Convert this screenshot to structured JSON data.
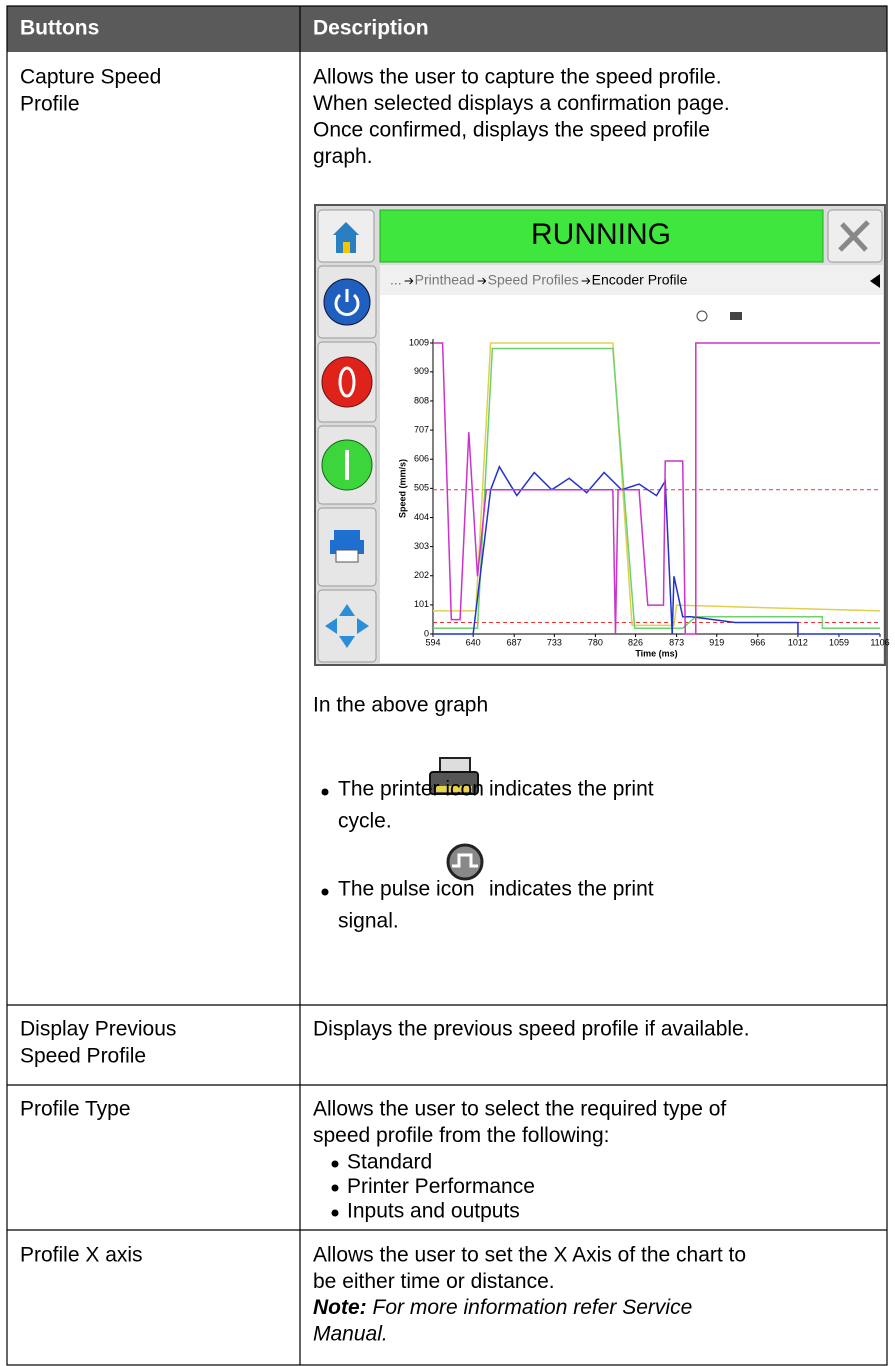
{
  "table": {
    "header": [
      "Buttons",
      "Description"
    ],
    "rows": [
      {
        "button": [
          "Capture Speed",
          "Profile"
        ],
        "description": [
          "Allows the user to capture the speed profile.",
          "When selected displays a confirmation page.",
          "Once confirmed, displays the speed profile",
          "graph."
        ],
        "screenshot": {
          "status": "RUNNING",
          "breadcrumb": [
            "...",
            "Printhead",
            "Speed Profiles",
            "Encoder Profile"
          ],
          "chart": {
            "type": "line",
            "ylabel": "Speed (mm/s)",
            "xlabel": "Time (ms)",
            "xlim": [
              594,
              1106
            ],
            "ylim": [
              0,
              1009
            ],
            "xticks": [
              594,
              640,
              687,
              733,
              780,
              826,
              873,
              919,
              966,
              1012,
              1059,
              1106
            ],
            "yticks": [
              0,
              101,
              202,
              303,
              404,
              505,
              606,
              707,
              808,
              909,
              1009
            ],
            "series": [
              {
                "color": "#e0d050",
                "x": [
                  594,
                  643,
                  660,
                  800,
                  822,
                  870,
                  873,
                  1106
                ],
                "values": [
                  80,
                  80,
                  1009,
                  1009,
                  30,
                  30,
                  100,
                  80
                ]
              },
              {
                "color": "#6cd26c",
                "x": [
                  594,
                  645,
                  662,
                  800,
                  825,
                  880,
                  895,
                  1040,
                  1040,
                  1106
                ],
                "values": [
                  20,
                  20,
                  990,
                  990,
                  20,
                  20,
                  60,
                  60,
                  20,
                  20
                ]
              },
              {
                "color": "#2233cc",
                "x": [
                  594,
                  640,
                  660,
                  670,
                  690,
                  710,
                  730,
                  750,
                  770,
                  790,
                  810,
                  830,
                  850,
                  860,
                  868,
                  870,
                  880,
                  890,
                  940,
                  1012,
                  1012,
                  1106
                ],
                "values": [
                  0,
                  0,
                  500,
                  580,
                  480,
                  560,
                  500,
                  540,
                  490,
                  560,
                  500,
                  520,
                  480,
                  530,
                  0,
                  200,
                  60,
                  60,
                  40,
                  40,
                  0,
                  0
                ]
              },
              {
                "color": "#cc33cc",
                "x": [
                  594,
                  605,
                  615,
                  625,
                  635,
                  645,
                  655,
                  800,
                  803,
                  806,
                  830,
                  840,
                  858,
                  860,
                  880,
                  883,
                  895,
                  895,
                  1106
                ],
                "values": [
                  1009,
                  1009,
                  50,
                  50,
                  700,
                  200,
                  500,
                  500,
                  0,
                  500,
                  500,
                  100,
                  100,
                  600,
                  600,
                  0,
                  0,
                  1009,
                  1009
                ]
              }
            ],
            "reference_lines": [
              {
                "color": "#e33",
                "value": 500
              },
              {
                "color": "#e33",
                "value": 40
              }
            ]
          }
        },
        "after": "In the above graph",
        "bullets": [
          {
            "before": "The printer icon",
            "after": "indicates the print",
            "cont": "cycle."
          },
          {
            "before": "The pulse icon",
            "after": "indicates the print",
            "cont": "signal."
          }
        ]
      },
      {
        "button": [
          "Display Previous",
          "Speed Profile"
        ],
        "description": [
          "Displays the previous speed profile if available."
        ]
      },
      {
        "button": [
          "Profile Type"
        ],
        "description": [
          "Allows the user to select the required type of",
          "speed profile from the following:"
        ],
        "list": [
          "Standard",
          "Printer Performance",
          "Inputs and outputs"
        ]
      },
      {
        "button": [
          "Profile X axis"
        ],
        "description": [
          "Allows the user to set the X Axis of the chart to",
          "be either time or distance."
        ],
        "note_label": "Note:",
        "note": [
          " For more information refer Service",
          "Manual."
        ]
      }
    ]
  }
}
